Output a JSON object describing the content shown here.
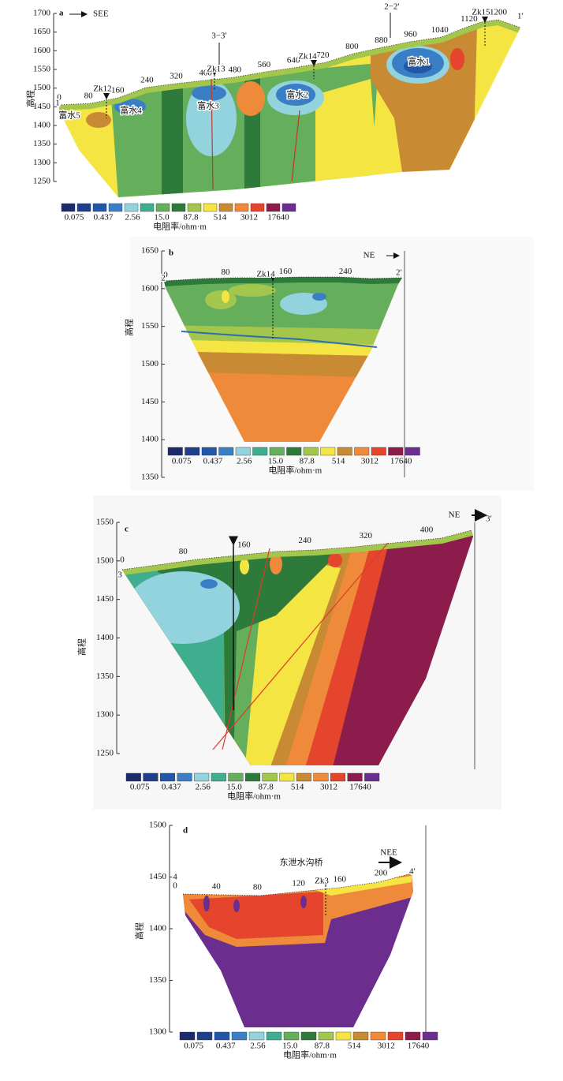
{
  "legend": {
    "colors": [
      "#1b2a6b",
      "#1f3f8c",
      "#2256a6",
      "#3a7fc6",
      "#93d3de",
      "#3fae8e",
      "#64ae5c",
      "#2d7a3a",
      "#a3c64c",
      "#f4e543",
      "#c98a34",
      "#ee8a3a",
      "#e5452c",
      "#8c1c4c",
      "#6b2d8e"
    ],
    "labels": [
      "0.075",
      "0.437",
      "2.56",
      "15.0",
      "87.8",
      "514",
      "3012",
      "17640"
    ],
    "unit": "电阻率/ohm·m"
  },
  "panels": [
    {
      "label": "a",
      "direction": "SEE",
      "ylabel": "高程",
      "ylim": [
        1250,
        1700
      ],
      "yticks": [
        1250,
        1300,
        1350,
        1400,
        1450,
        1500,
        1550,
        1600,
        1650,
        1700
      ],
      "xlim": [
        0,
        1200
      ],
      "distance_labels": [
        0,
        80,
        160,
        240,
        320,
        400,
        480,
        560,
        640,
        720,
        800,
        880,
        960,
        1040,
        1120,
        1200
      ],
      "annotations": [
        "Zk12",
        "Zk13",
        "Zk14",
        "Zk15",
        "3−3′",
        "2−2′",
        "1",
        "1′",
        "富水5",
        "富水4",
        "富水3",
        "富水2",
        "富水1"
      ]
    },
    {
      "label": "b",
      "direction": "NE",
      "ylabel": "高程",
      "ylim": [
        1350,
        1650
      ],
      "yticks": [
        1350,
        1400,
        1450,
        1500,
        1550,
        1600,
        1650
      ],
      "xlim": [
        0,
        240
      ],
      "distance_labels": [
        0,
        80,
        160,
        240
      ],
      "annotations": [
        "Zk14",
        "2",
        "2′"
      ]
    },
    {
      "label": "c",
      "direction": "NE",
      "ylabel": "高程",
      "ylim": [
        1250,
        1550
      ],
      "yticks": [
        1250,
        1300,
        1350,
        1400,
        1450,
        1500,
        1550
      ],
      "xlim": [
        0,
        400
      ],
      "distance_labels": [
        0,
        80,
        160,
        240,
        320,
        400
      ],
      "annotations": [
        "3",
        "3′"
      ]
    },
    {
      "label": "d",
      "direction": "NEE",
      "ylabel": "高程",
      "ylim": [
        1300,
        1500
      ],
      "yticks": [
        1300,
        1350,
        1400,
        1450,
        1500
      ],
      "xlim": [
        0,
        200
      ],
      "distance_labels": [
        0,
        40,
        80,
        120,
        160,
        200
      ],
      "annotations": [
        "4",
        "4′",
        "东泄水沟桥",
        "Zk3"
      ]
    }
  ]
}
